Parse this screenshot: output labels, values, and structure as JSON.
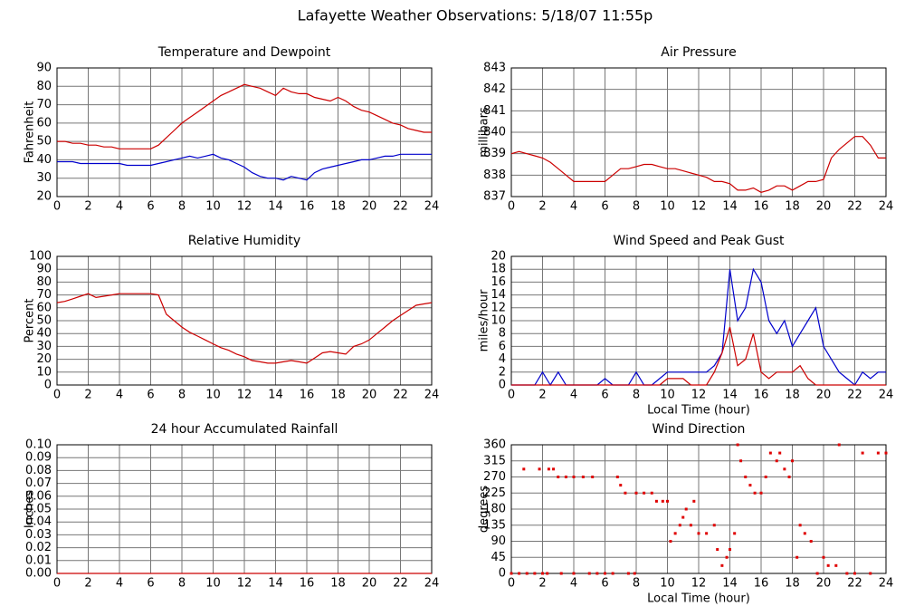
{
  "title": "Lafayette Weather Observations: 5/18/07 11:55p",
  "chart_data": [
    {
      "type": "line",
      "title": "Temperature and Dewpoint",
      "ylabel": "Fahrenheit",
      "grid": true,
      "xlim": [
        0,
        24
      ],
      "xticks": [
        0,
        2,
        4,
        6,
        8,
        10,
        12,
        14,
        16,
        18,
        20,
        22,
        24
      ],
      "ylim": [
        20,
        90
      ],
      "yticks": [
        20,
        30,
        40,
        50,
        60,
        70,
        80,
        90
      ],
      "x": [
        0,
        0.5,
        1,
        1.5,
        2,
        2.5,
        3,
        3.5,
        4,
        4.5,
        5,
        5.5,
        6,
        6.5,
        7,
        7.5,
        8,
        8.5,
        9,
        9.5,
        10,
        10.5,
        11,
        11.5,
        12,
        12.5,
        13,
        13.5,
        14,
        14.5,
        15,
        15.5,
        16,
        16.5,
        17,
        17.5,
        18,
        18.5,
        19,
        19.5,
        20,
        20.5,
        21,
        21.5,
        22,
        22.5,
        23,
        23.5,
        24
      ],
      "series": [
        {
          "color": "#cc0000",
          "values": [
            50,
            50,
            49,
            49,
            48,
            48,
            47,
            47,
            46,
            46,
            46,
            46,
            46,
            48,
            52,
            56,
            60,
            63,
            66,
            69,
            72,
            75,
            77,
            79,
            81,
            80,
            79,
            77,
            75,
            79,
            77,
            76,
            76,
            74,
            73,
            72,
            74,
            72,
            69,
            67,
            66,
            64,
            62,
            60,
            59,
            57,
            56,
            55,
            55
          ]
        },
        {
          "color": "#0000cc",
          "values": [
            39,
            39,
            39,
            38,
            38,
            38,
            38,
            38,
            38,
            37,
            37,
            37,
            37,
            38,
            39,
            40,
            41,
            42,
            41,
            42,
            43,
            41,
            40,
            38,
            36,
            33,
            31,
            30,
            30,
            29,
            31,
            30,
            29,
            33,
            35,
            36,
            37,
            38,
            39,
            40,
            40,
            41,
            42,
            42,
            43,
            43,
            43,
            43,
            43
          ]
        }
      ]
    },
    {
      "type": "line",
      "title": "Air Pressure",
      "ylabel": "millibars",
      "grid": true,
      "xlim": [
        0,
        24
      ],
      "xticks": [
        0,
        2,
        4,
        6,
        8,
        10,
        12,
        14,
        16,
        18,
        20,
        22,
        24
      ],
      "ylim": [
        837,
        843
      ],
      "yticks": [
        837,
        838,
        839,
        840,
        841,
        842,
        843
      ],
      "x": [
        0,
        0.5,
        1,
        1.5,
        2,
        2.5,
        3,
        3.5,
        4,
        4.5,
        5,
        5.5,
        6,
        6.5,
        7,
        7.5,
        8,
        8.5,
        9,
        9.5,
        10,
        10.5,
        11,
        11.5,
        12,
        12.5,
        13,
        13.5,
        14,
        14.5,
        15,
        15.5,
        16,
        16.5,
        17,
        17.5,
        18,
        18.5,
        19,
        19.5,
        20,
        20.5,
        21,
        21.5,
        22,
        22.5,
        23,
        23.5,
        24
      ],
      "series": [
        {
          "color": "#cc0000",
          "values": [
            839,
            839.1,
            839,
            838.9,
            838.8,
            838.6,
            838.3,
            838,
            837.7,
            837.7,
            837.7,
            837.7,
            837.7,
            838,
            838.3,
            838.3,
            838.4,
            838.5,
            838.5,
            838.4,
            838.3,
            838.3,
            838.2,
            838.1,
            838,
            837.9,
            837.7,
            837.7,
            837.6,
            837.3,
            837.3,
            837.4,
            837.2,
            837.3,
            837.5,
            837.5,
            837.3,
            837.5,
            837.7,
            837.7,
            837.8,
            838.8,
            839.2,
            839.5,
            839.8,
            839.8,
            839.4,
            838.8,
            838.8
          ]
        }
      ]
    },
    {
      "type": "line",
      "title": "Relative Humidity",
      "ylabel": "Percent",
      "grid": true,
      "xlim": [
        0,
        24
      ],
      "xticks": [
        0,
        2,
        4,
        6,
        8,
        10,
        12,
        14,
        16,
        18,
        20,
        22,
        24
      ],
      "ylim": [
        0,
        100
      ],
      "yticks": [
        0,
        10,
        20,
        30,
        40,
        50,
        60,
        70,
        80,
        90,
        100
      ],
      "x": [
        0,
        0.5,
        1,
        1.5,
        2,
        2.5,
        3,
        3.5,
        4,
        4.5,
        5,
        5.5,
        6,
        6.5,
        7,
        7.5,
        8,
        8.5,
        9,
        9.5,
        10,
        10.5,
        11,
        11.5,
        12,
        12.5,
        13,
        13.5,
        14,
        14.5,
        15,
        15.5,
        16,
        16.5,
        17,
        17.5,
        18,
        18.5,
        19,
        19.5,
        20,
        20.5,
        21,
        21.5,
        22,
        22.5,
        23,
        23.5,
        24
      ],
      "series": [
        {
          "color": "#cc0000",
          "values": [
            64,
            65,
            67,
            69,
            71,
            68,
            69,
            70,
            71,
            71,
            71,
            71,
            71,
            70,
            55,
            50,
            45,
            41,
            38,
            35,
            32,
            29,
            27,
            24,
            22,
            19,
            18,
            17,
            17,
            18,
            19,
            18,
            17,
            21,
            25,
            26,
            25,
            24,
            30,
            32,
            35,
            40,
            45,
            50,
            54,
            58,
            62,
            63,
            64
          ]
        }
      ]
    },
    {
      "type": "line",
      "title": "Wind Speed and Peak Gust",
      "ylabel": "miles/hour",
      "xlabel": "Local Time (hour)",
      "grid": true,
      "xlim": [
        0,
        24
      ],
      "xticks": [
        0,
        2,
        4,
        6,
        8,
        10,
        12,
        14,
        16,
        18,
        20,
        22,
        24
      ],
      "ylim": [
        0,
        20
      ],
      "yticks": [
        0,
        2,
        4,
        6,
        8,
        10,
        12,
        14,
        16,
        18,
        20
      ],
      "x": [
        0,
        0.5,
        1,
        1.5,
        2,
        2.5,
        3,
        3.5,
        4,
        4.5,
        5,
        5.5,
        6,
        6.5,
        7,
        7.5,
        8,
        8.5,
        9,
        9.5,
        10,
        10.5,
        11,
        11.5,
        12,
        12.5,
        13,
        13.5,
        14,
        14.5,
        15,
        15.5,
        16,
        16.5,
        17,
        17.5,
        18,
        18.5,
        19,
        19.5,
        20,
        20.5,
        21,
        21.5,
        22,
        22.5,
        23,
        23.5,
        24
      ],
      "series": [
        {
          "color": "#0000cc",
          "values": [
            0,
            0,
            0,
            0,
            2,
            0,
            2,
            0,
            0,
            0,
            0,
            0,
            1,
            0,
            0,
            0,
            2,
            0,
            0,
            1,
            2,
            2,
            2,
            2,
            2,
            2,
            3,
            5,
            18,
            10,
            12,
            18,
            16,
            10,
            8,
            10,
            6,
            8,
            10,
            12,
            6,
            4,
            2,
            1,
            0,
            2,
            1,
            2,
            2
          ]
        },
        {
          "color": "#cc0000",
          "values": [
            0,
            0,
            0,
            0,
            0,
            0,
            0,
            0,
            0,
            0,
            0,
            0,
            0,
            0,
            0,
            0,
            0,
            0,
            0,
            0,
            1,
            1,
            1,
            0,
            0,
            0,
            2,
            5,
            9,
            3,
            4,
            8,
            2,
            1,
            2,
            2,
            2,
            3,
            1,
            0,
            0,
            0,
            0,
            0,
            0,
            0,
            0,
            0,
            0
          ]
        }
      ]
    },
    {
      "type": "line",
      "title": "24 hour Accumulated Rainfall",
      "ylabel": "Inches",
      "grid": true,
      "xlim": [
        0,
        24
      ],
      "xticks": [
        0,
        2,
        4,
        6,
        8,
        10,
        12,
        14,
        16,
        18,
        20,
        22,
        24
      ],
      "ylim": [
        0,
        0.1
      ],
      "yticks": [
        {
          "value": 0,
          "label": "0.00"
        },
        {
          "value": 0.01,
          "label": "0.01"
        },
        {
          "value": 0.02,
          "label": "0.02"
        },
        {
          "value": 0.03,
          "label": "0.03"
        },
        {
          "value": 0.04,
          "label": "0.04"
        },
        {
          "value": 0.05,
          "label": "0.05"
        },
        {
          "value": 0.06,
          "label": "0.06"
        },
        {
          "value": 0.07,
          "label": "0.07"
        },
        {
          "value": 0.08,
          "label": "0.08"
        },
        {
          "value": 0.09,
          "label": "0.09"
        },
        {
          "value": 0.1,
          "label": "0.10"
        }
      ],
      "x": [
        0,
        24
      ],
      "series": [
        {
          "color": "#cc0000",
          "values": [
            0,
            0
          ]
        }
      ]
    },
    {
      "type": "scatter",
      "title": "Wind Direction",
      "ylabel": "degrees",
      "xlabel": "Local Time (hour)",
      "grid": true,
      "xlim": [
        0,
        24
      ],
      "xticks": [
        0,
        2,
        4,
        6,
        8,
        10,
        12,
        14,
        16,
        18,
        20,
        22,
        24
      ],
      "ylim": [
        0,
        360
      ],
      "yticks": [
        0,
        45,
        90,
        135,
        180,
        225,
        270,
        315,
        360
      ],
      "x": [
        0,
        0.5,
        1,
        1.5,
        2,
        2.3,
        0.8,
        1.8,
        2.4,
        2.7,
        3,
        3.5,
        4,
        4.6,
        5.2,
        3.2,
        4,
        5,
        5.5,
        6,
        6.5,
        6.8,
        7,
        7.3,
        7.5,
        7.9,
        8,
        8.5,
        9,
        9.3,
        9.7,
        10,
        10.2,
        10.5,
        10.8,
        11,
        11.2,
        11.5,
        11.7,
        12,
        12.5,
        13,
        13.2,
        13.5,
        13.8,
        14,
        14.3,
        14.5,
        14.7,
        15,
        15.3,
        15.6,
        16,
        16.3,
        16.6,
        17,
        17.2,
        17.5,
        17.8,
        18,
        18.3,
        18.5,
        18.8,
        19.2,
        19.6,
        20,
        20.3,
        20.8,
        21,
        21.5,
        22,
        22.5,
        23,
        23.5,
        24
      ],
      "series": [
        {
          "color": "#e00000",
          "values": [
            0,
            0,
            0,
            0,
            0,
            0,
            292,
            292,
            292,
            292,
            270,
            270,
            270,
            270,
            270,
            0,
            0,
            0,
            0,
            0,
            0,
            270,
            247,
            225,
            0,
            0,
            225,
            225,
            225,
            202,
            202,
            202,
            90,
            112,
            135,
            157,
            180,
            135,
            202,
            112,
            112,
            135,
            67,
            22,
            45,
            67,
            112,
            360,
            315,
            270,
            247,
            225,
            225,
            270,
            337,
            315,
            337,
            292,
            270,
            315,
            45,
            135,
            112,
            90,
            0,
            45,
            22,
            22,
            360,
            0,
            0,
            337,
            0,
            337,
            337
          ]
        }
      ]
    }
  ]
}
